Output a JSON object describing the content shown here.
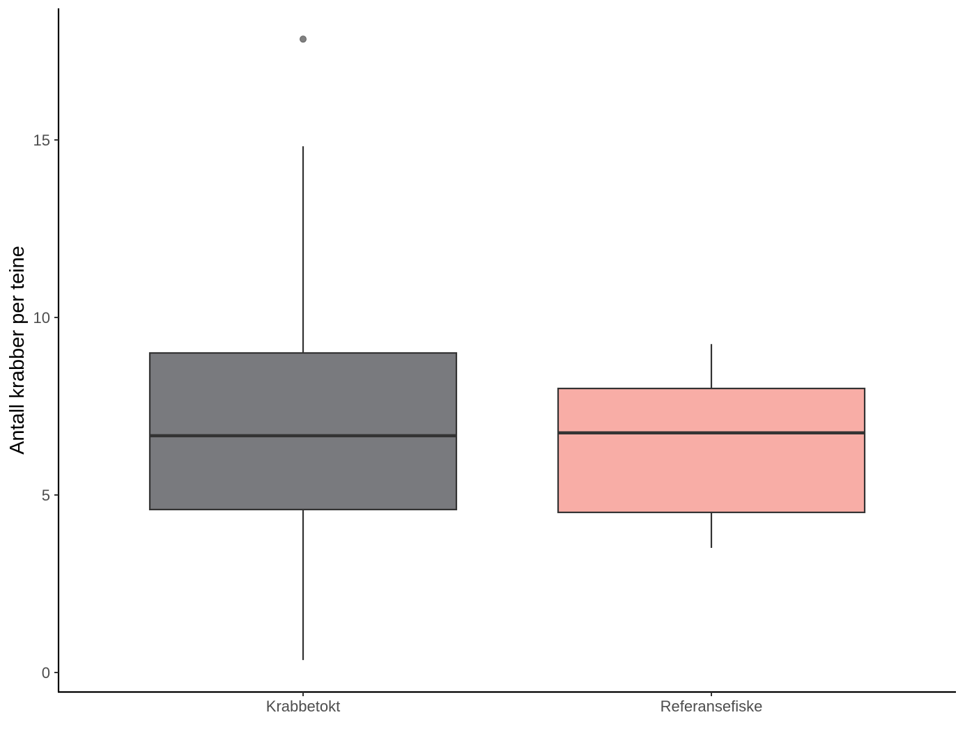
{
  "chart_data": {
    "type": "box",
    "title": "",
    "xlabel": "",
    "ylabel": "Antall krabber per teine",
    "ylim": [
      -0.5,
      18.5
    ],
    "yticks": [
      0,
      5,
      10,
      15
    ],
    "ytick_labels": [
      "0",
      "5",
      "10",
      "15"
    ],
    "grid": false,
    "legend": null,
    "categories": [
      "Krabbetokt",
      "Referansefiske"
    ],
    "series": [
      {
        "name": "Krabbetokt",
        "fill": "#797a7e",
        "whisker_low": 0.35,
        "q1": 4.59,
        "median": 6.67,
        "q3": 9.0,
        "whisker_high": 14.82,
        "outliers": [
          17.84
        ]
      },
      {
        "name": "Referansefiske",
        "fill": "#f8ada6",
        "whisker_low": 3.51,
        "q1": 4.51,
        "median": 6.75,
        "q3": 8.0,
        "whisker_high": 9.25,
        "outliers": []
      }
    ],
    "colors": {
      "line": "#333333",
      "axis": "#000000",
      "outlier": "#808080",
      "tick_text": "#4d4d4d"
    }
  }
}
